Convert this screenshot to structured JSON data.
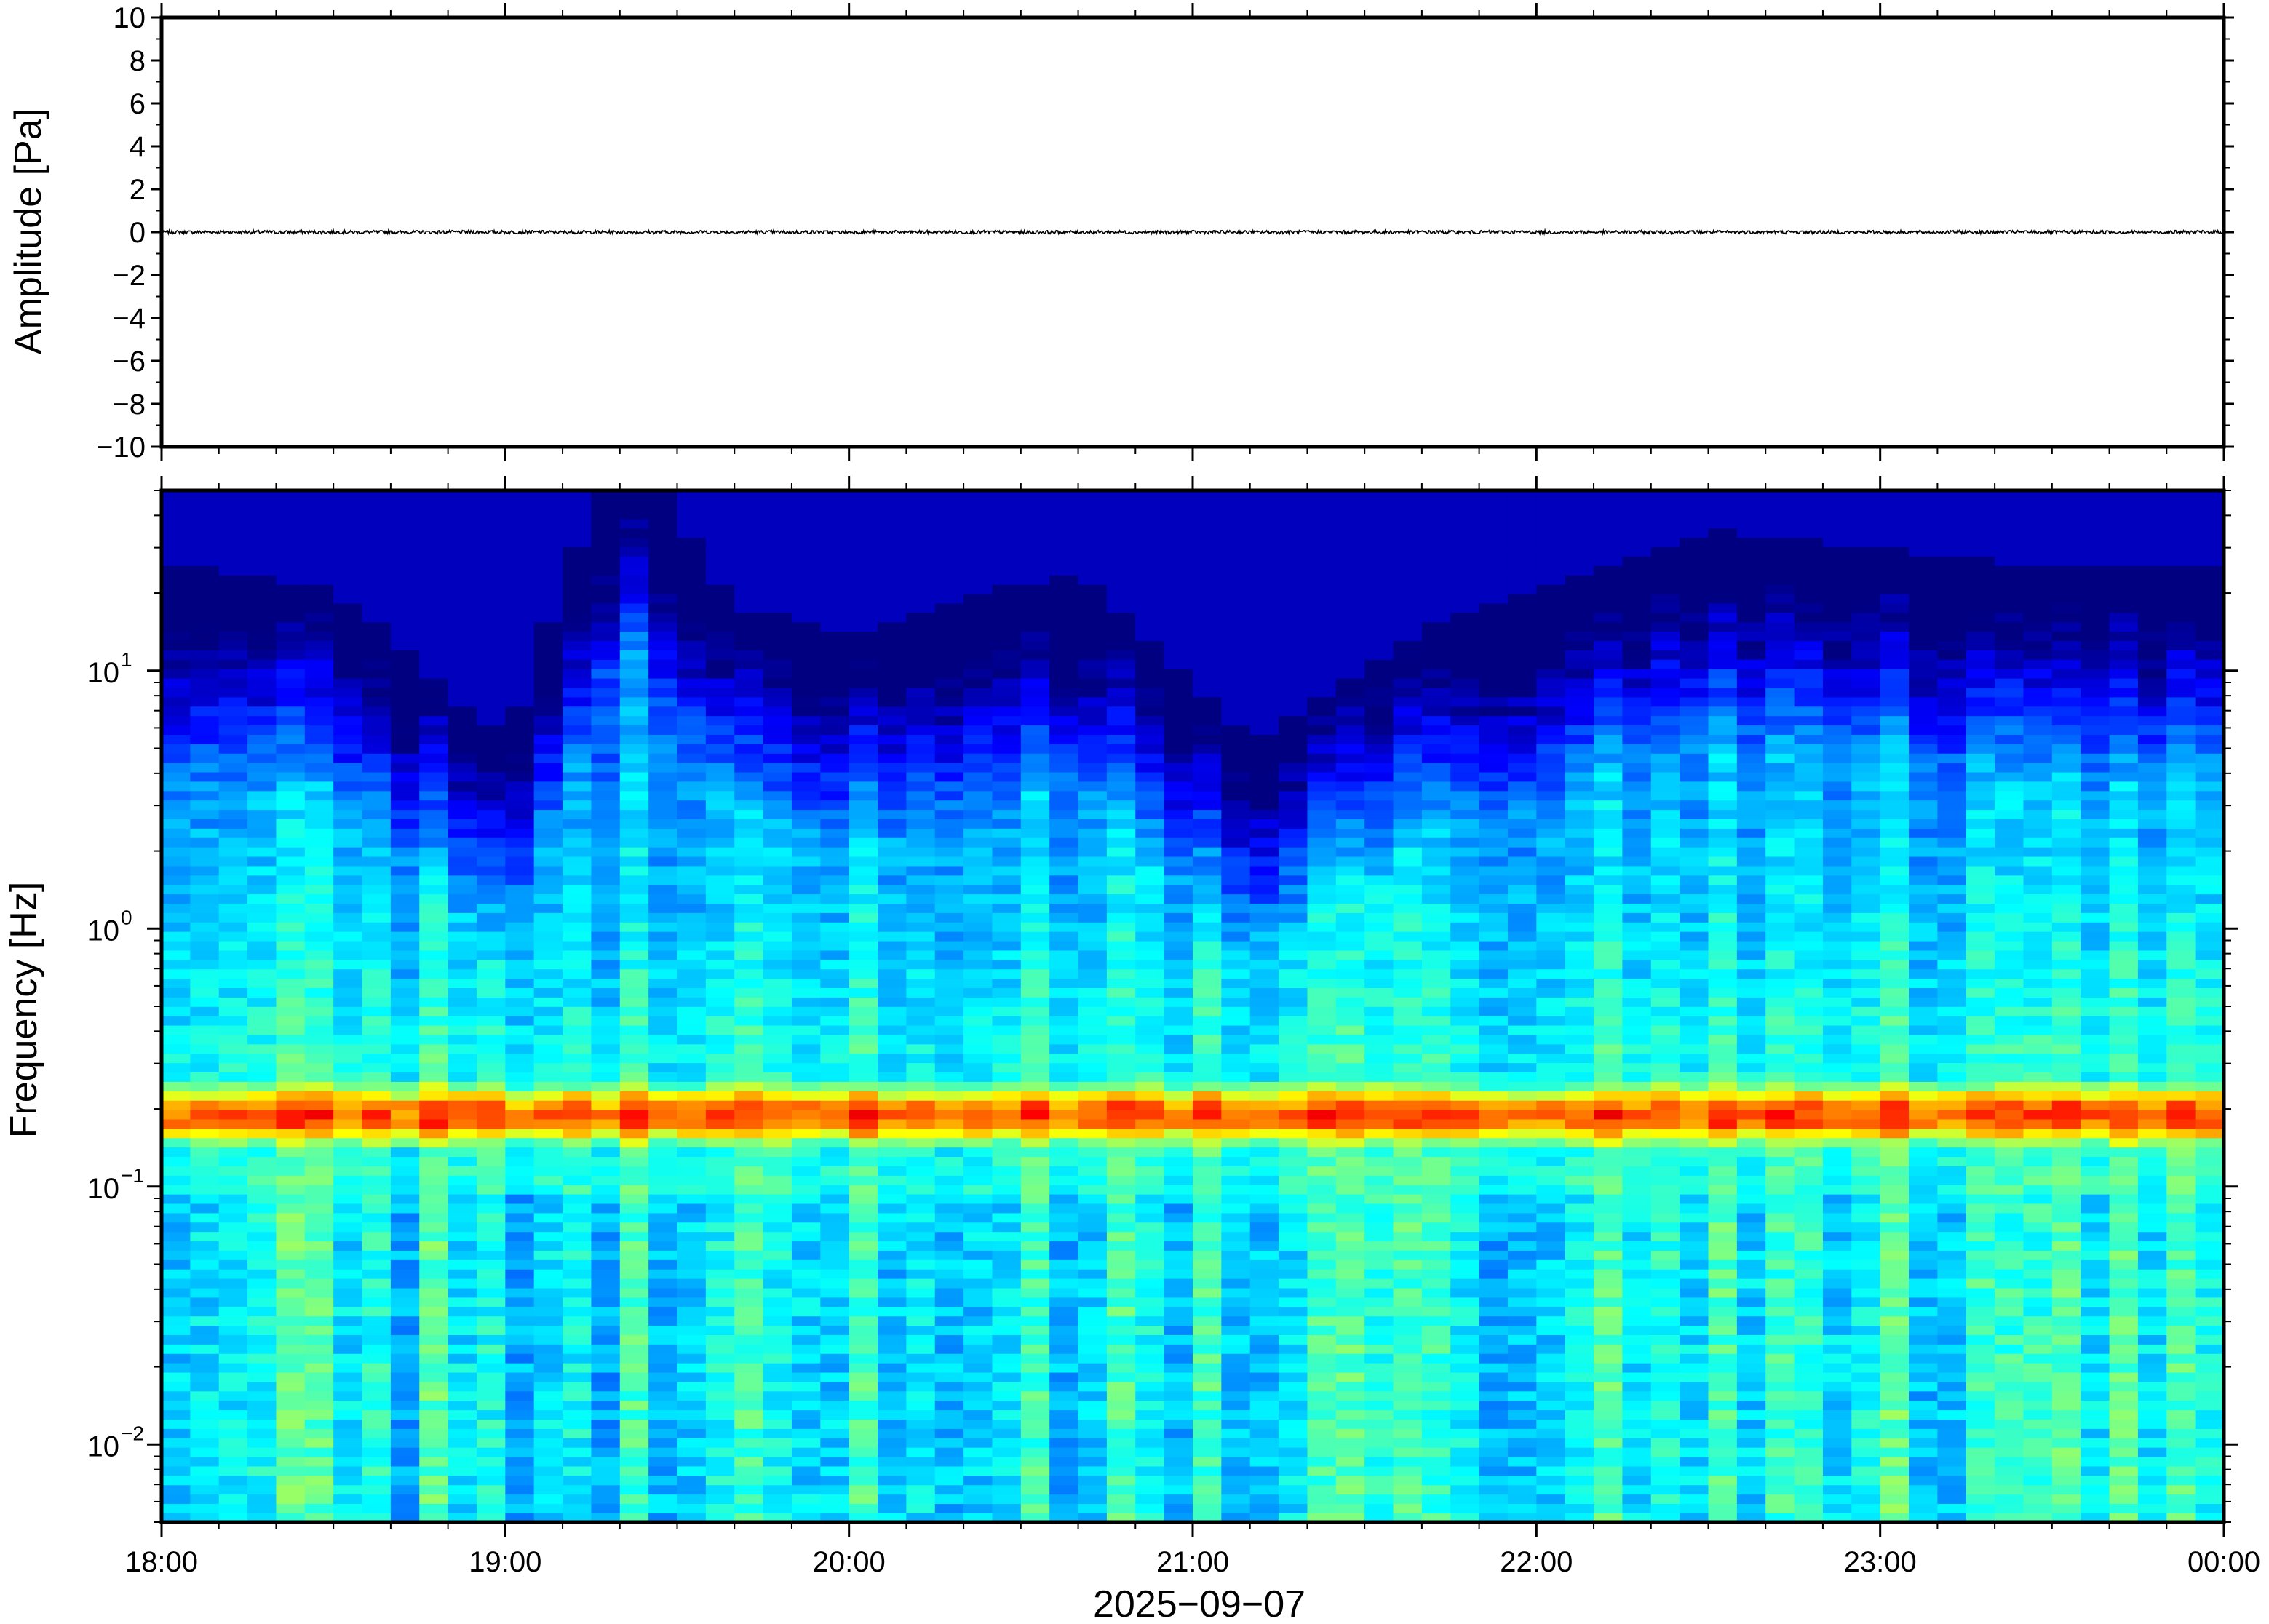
{
  "chart_data": [
    {
      "type": "line",
      "panel": "waveform",
      "ylabel": "Amplitude [Pa]",
      "ylim": [
        -10,
        10
      ],
      "yticks": [
        "10",
        "8",
        "6",
        "4",
        "2",
        "0",
        "−2",
        "−4",
        "−6",
        "−8",
        "−10"
      ],
      "ytick_values": [
        10,
        8,
        6,
        4,
        2,
        0,
        -2,
        -4,
        -6,
        -8,
        -10
      ],
      "x_range": [
        "2025-09-07T18:00",
        "2025-09-08T00:00"
      ],
      "series": [
        {
          "description": "pressure trace",
          "approx_amplitude": 0.08,
          "baseline": 0
        }
      ],
      "line_color": "#000000"
    },
    {
      "type": "heatmap",
      "panel": "spectrogram",
      "ylabel": "Frequency [Hz]",
      "yscale": "log",
      "ylim": [
        0.005,
        50
      ],
      "ytick_values": [
        0.01,
        0.1,
        1,
        10
      ],
      "yticks": [
        {
          "base": "10",
          "exp": "−2"
        },
        {
          "base": "10",
          "exp": "−1"
        },
        {
          "base": "10",
          "exp": "0"
        },
        {
          "base": "10",
          "exp": "1"
        }
      ],
      "xlabel": "2025−09−07",
      "xticks": [
        "18:00",
        "19:00",
        "20:00",
        "21:00",
        "22:00",
        "23:00",
        "00:00"
      ],
      "x_range": [
        "2025-09-07T18:00",
        "2025-09-08T00:00"
      ],
      "colormap": "jet",
      "microbarom_peak_hz": 0.19,
      "high_frequency_cutoff_hz_by_hour": {
        "18:00": 15,
        "18:30": 12,
        "19:00": 3,
        "19:20": 50,
        "19:40": 10,
        "20:00": 8,
        "20:40": 14,
        "21:10": 3,
        "21:40": 8,
        "22:30": 20,
        "23:30": 14
      },
      "colors": {
        "low": "#0c0780",
        "background_high_freq": "#0c0780",
        "mid": "#3ec8f0",
        "peak": "#f4a046"
      }
    }
  ]
}
